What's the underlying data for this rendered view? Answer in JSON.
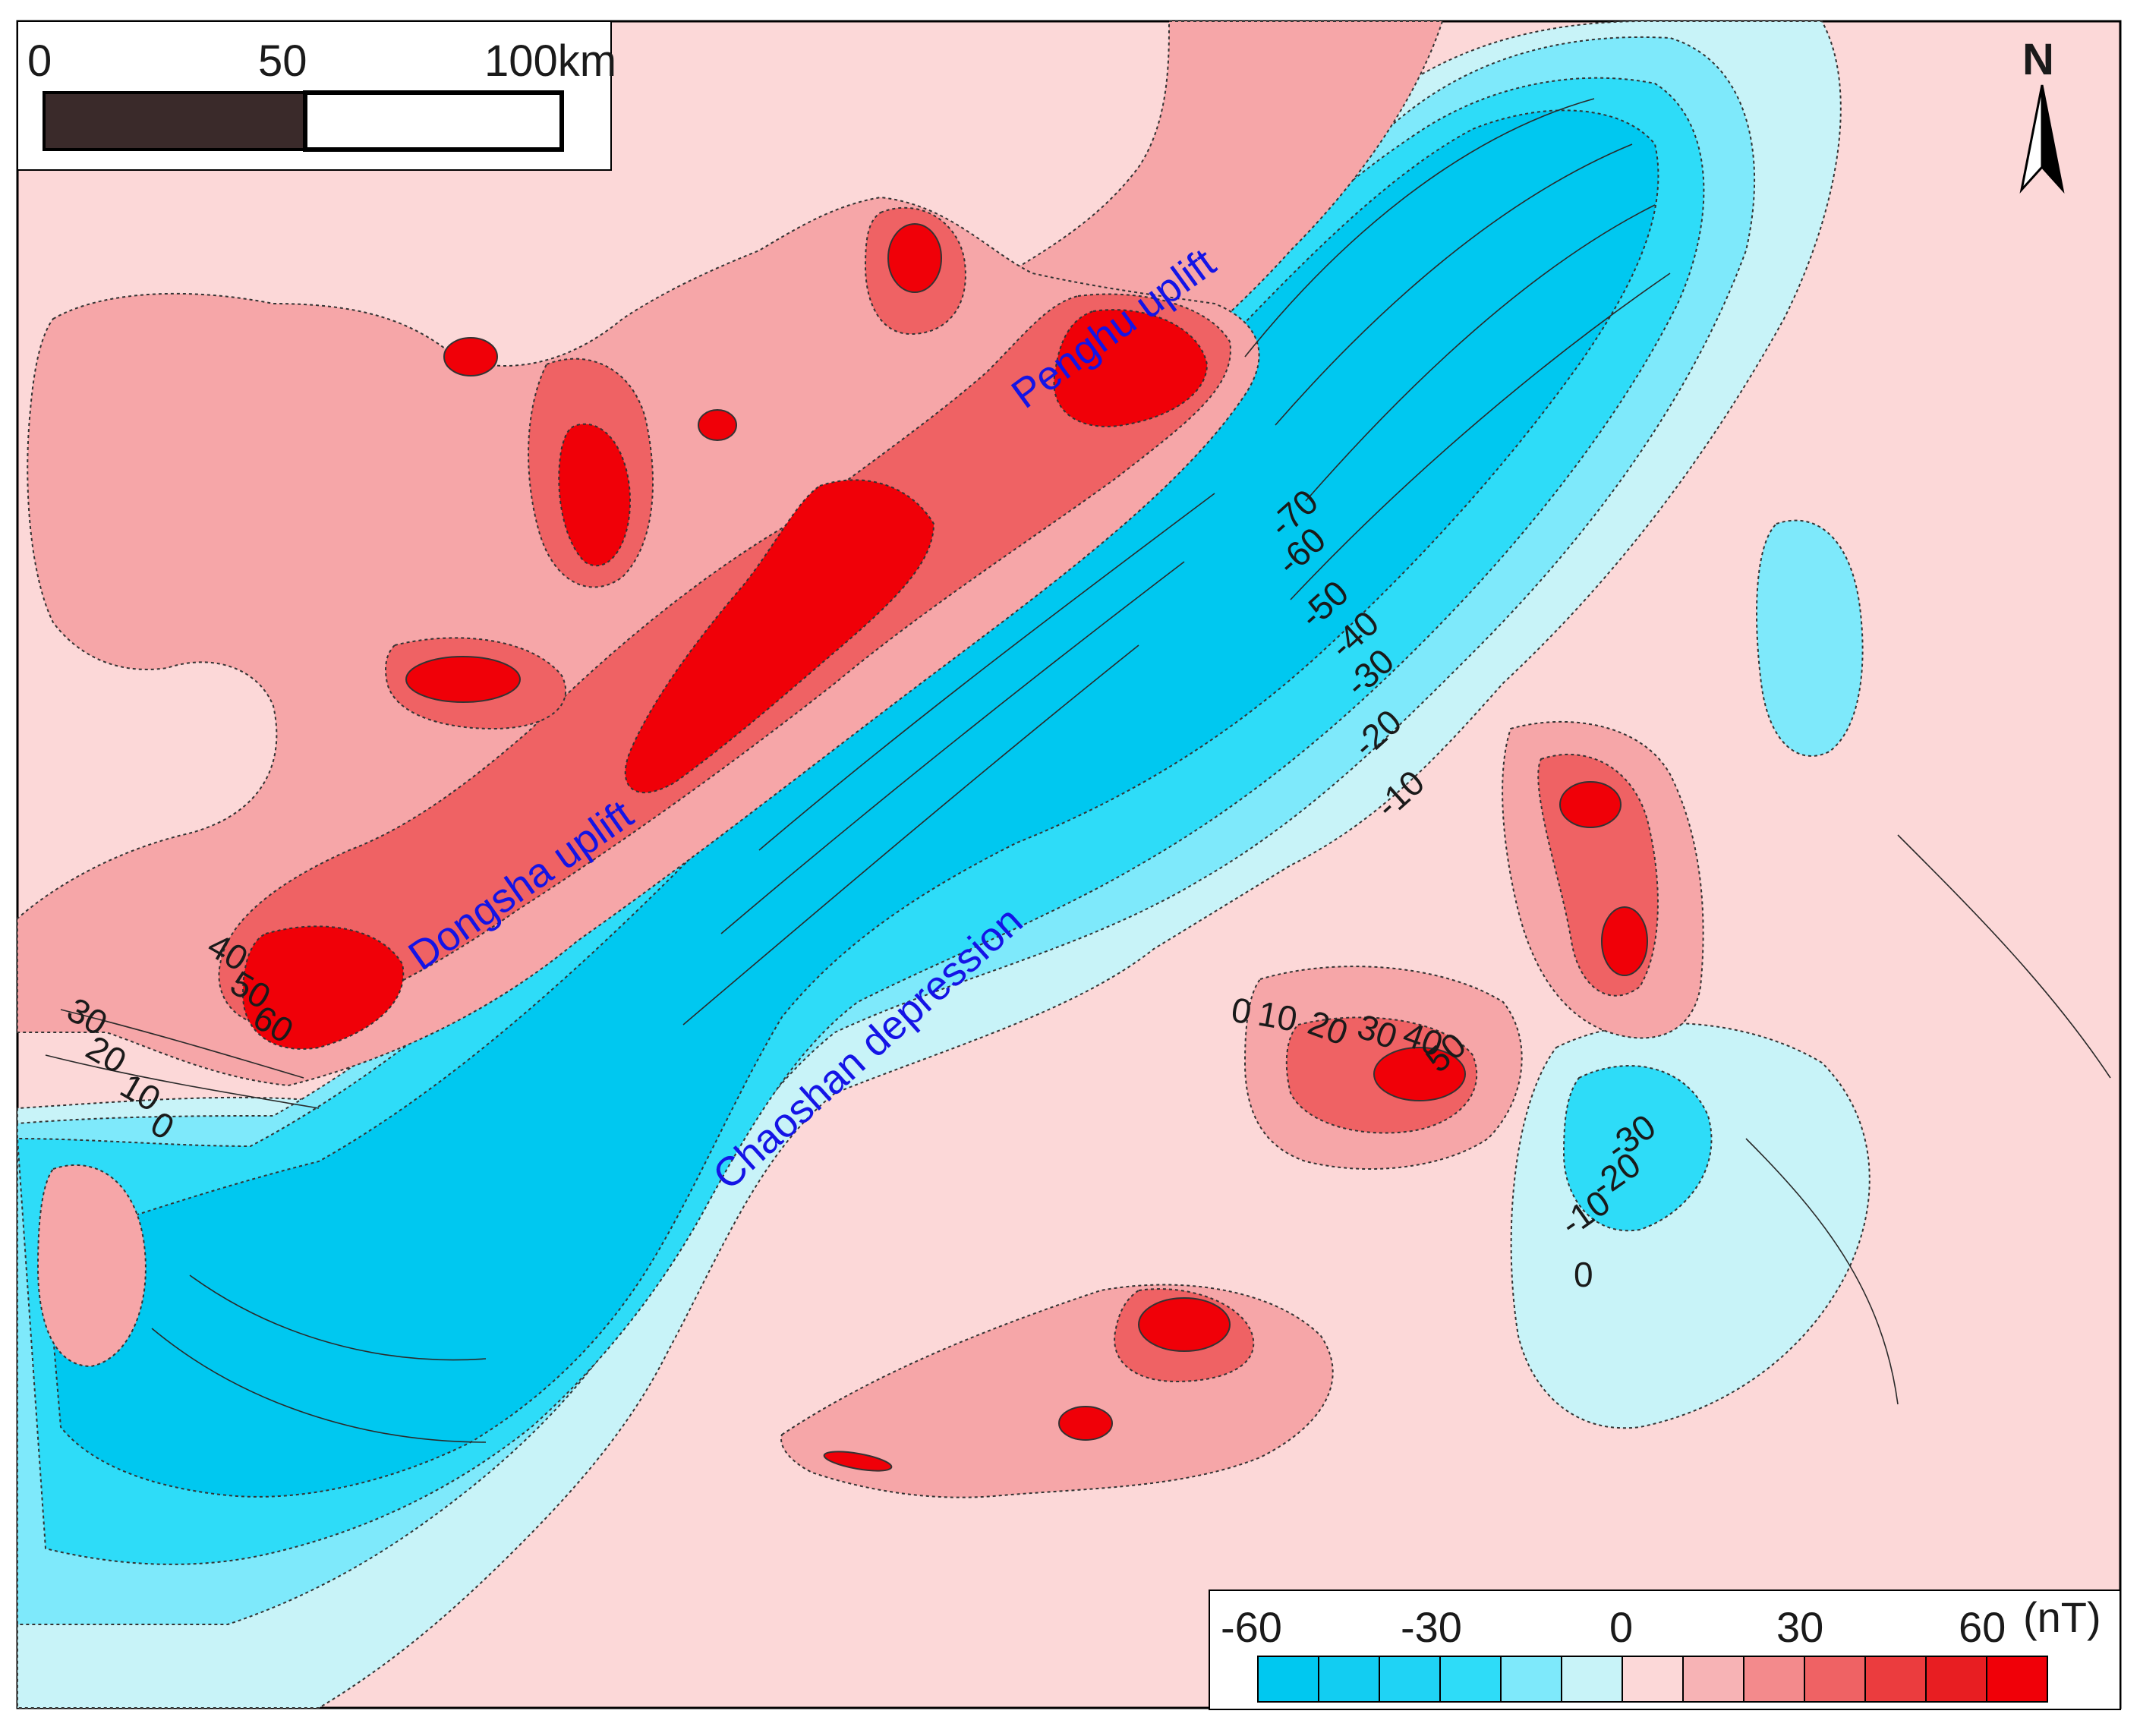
{
  "scale_bar": {
    "labels": [
      "0",
      "50",
      "100km"
    ]
  },
  "north_arrow": {
    "label": "N",
    "icon": "north-arrow-icon"
  },
  "regions": {
    "penghu": "Penghu  uplift",
    "dongsha": "Dongsha uplift",
    "chaoshan": "Chaoshan depression"
  },
  "contour_labels": {
    "main_slope": [
      "-70",
      "-60",
      "-50",
      "-40",
      "-30",
      "-20",
      "-10"
    ],
    "west": [
      "40",
      "50",
      "60"
    ],
    "southwest": [
      "30",
      "20",
      "10",
      "0"
    ],
    "east_positive": [
      "0",
      "10",
      "20",
      "30",
      "40",
      "50"
    ],
    "east_negative": [
      "-30",
      "-20",
      "-10",
      "0"
    ]
  },
  "legend": {
    "tick_labels": [
      "-60",
      "-30",
      "0",
      "30",
      "60"
    ],
    "unit": "(nT)",
    "colors": [
      "#00c8f0",
      "#12cdf2",
      "#1fd3f5",
      "#2edcf8",
      "#7ee9fb",
      "#c8f3f8",
      "#fcd8d8",
      "#f7b3b5",
      "#f38a8c",
      "#ef6264",
      "#eb3c3e",
      "#e81e22",
      "#f00008"
    ]
  },
  "palette": {
    "light_pink": "#fcd8d8",
    "pink": "#f6a6a8",
    "red_mid": "#ef6264",
    "red": "#f00008",
    "light_cyan": "#c8f3f8",
    "cyan_light": "#7ee9fb",
    "cyan": "#2edcf8",
    "cyan_deep": "#00c8f0"
  }
}
